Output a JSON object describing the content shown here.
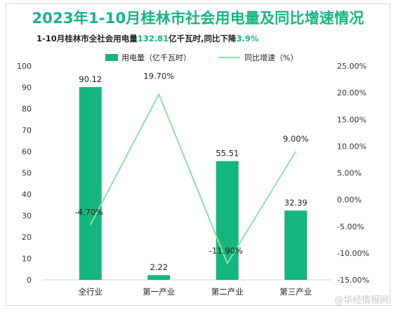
{
  "header": {
    "title": "2023年1-10月桂林市社会用电量及同比增速情况",
    "subtitle_prefix": "1-10月桂林市全社会用电量",
    "subtitle_value": "132.81",
    "subtitle_mid": "亿千瓦时,同比下降",
    "subtitle_rate": "3.9%"
  },
  "watermark": "@华经情报网",
  "chart_data": {
    "type": "bar",
    "title": "2023年1-10月桂林市社会用电量及同比增速情况",
    "categories": [
      "全行业",
      "第一产业",
      "第二产业",
      "第三产业"
    ],
    "series": [
      {
        "name": "用电量（亿千瓦时）",
        "type": "bar",
        "axis": "left",
        "values": [
          90.12,
          2.22,
          55.51,
          32.39
        ],
        "labels": [
          "90.12",
          "2.22",
          "55.51",
          "32.39"
        ],
        "color": "#15b67e"
      },
      {
        "name": "同比增速（%）",
        "type": "line",
        "axis": "right",
        "values": [
          -4.7,
          19.7,
          -11.9,
          9.0
        ],
        "labels": [
          "-4.70%",
          "19.70%",
          "-11.90%",
          "9.00%"
        ],
        "color": "#8de2a3"
      }
    ],
    "y_left": {
      "min": 0,
      "max": 100,
      "ticks": [
        "0",
        "10",
        "20",
        "30",
        "40",
        "50",
        "60",
        "70",
        "80",
        "90",
        "100"
      ]
    },
    "y_right": {
      "min": -15,
      "max": 25,
      "ticks": [
        "-15.00%",
        "-10.00%",
        "-5.00%",
        "0.00%",
        "5.00%",
        "10.00%",
        "15.00%",
        "20.00%",
        "25.00%"
      ]
    },
    "grid": false,
    "legend": "top"
  }
}
